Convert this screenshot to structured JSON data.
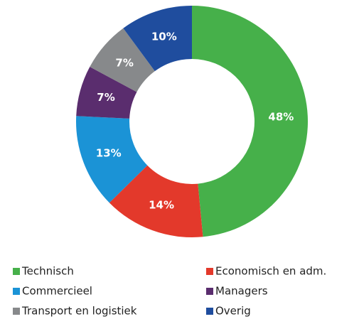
{
  "chart_data": {
    "type": "donut",
    "categories": [
      "Technisch",
      "Economisch en adm.",
      "Commercieel",
      "Managers",
      "Transport en logistiek",
      "Overig"
    ],
    "values": [
      48,
      14,
      13,
      7,
      7,
      10
    ],
    "value_labels": [
      "48%",
      "14%",
      "13%",
      "7%",
      "7%",
      "10%"
    ],
    "colors": [
      "#46b04a",
      "#e3392b",
      "#1b93d6",
      "#5a2d6e",
      "#87898b",
      "#1f4d9e"
    ]
  }
}
